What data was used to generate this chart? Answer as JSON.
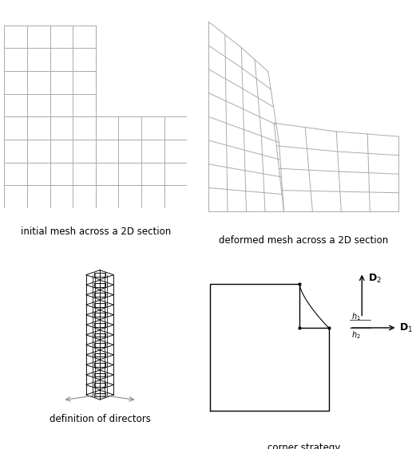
{
  "bg_color": "#ffffff",
  "grid_color": "#aaaaaa",
  "label_fontsize": 8.5,
  "top_left_label": "initial mesh across a 2D section",
  "top_right_label": "deformed mesh across a 2D section",
  "bottom_left_label": "definition of directors",
  "bottom_right_label": "corner strategy"
}
